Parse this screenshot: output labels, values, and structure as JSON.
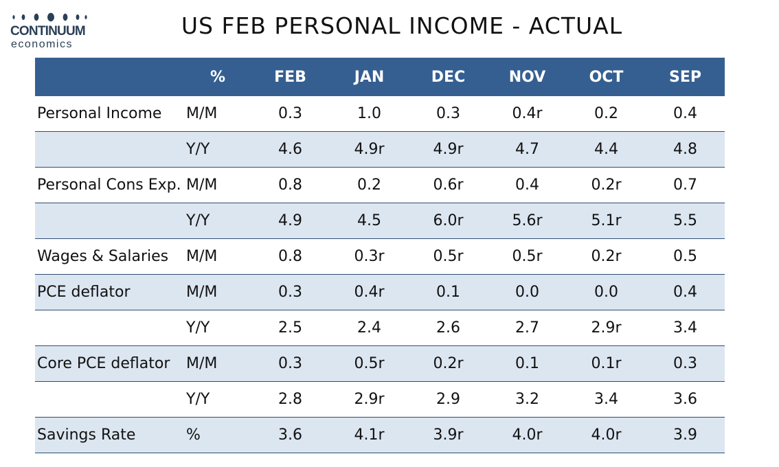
{
  "logo": {
    "name": "CONTINUUM",
    "sub": "economics",
    "color": "#2b3f57"
  },
  "title": "US FEB PERSONAL INCOME - ACTUAL",
  "table": {
    "header_color": "#355f91",
    "shade_color": "#dce6f1",
    "headers": [
      "",
      "%",
      "FEB",
      "JAN",
      "DEC",
      "NOV",
      "OCT",
      "SEP"
    ],
    "rows": [
      {
        "label": "Personal Income",
        "unit": "M/M",
        "values": [
          "0.3",
          "1.0",
          "0.3",
          "0.4r",
          "0.2",
          "0.4"
        ],
        "shaded": false
      },
      {
        "label": "",
        "unit": "Y/Y",
        "values": [
          "4.6",
          "4.9r",
          "4.9r",
          "4.7",
          "4.4",
          "4.8"
        ],
        "shaded": true
      },
      {
        "label": "Personal Cons Exp.",
        "unit": "M/M",
        "values": [
          "0.8",
          "0.2",
          "0.6r",
          "0.4",
          "0.2r",
          "0.7"
        ],
        "shaded": false
      },
      {
        "label": "",
        "unit": "Y/Y",
        "values": [
          "4.9",
          "4.5",
          "6.0r",
          "5.6r",
          "5.1r",
          "5.5"
        ],
        "shaded": true
      },
      {
        "label": "Wages & Salaries",
        "unit": "M/M",
        "values": [
          "0.8",
          "0.3r",
          "0.5r",
          "0.5r",
          "0.2r",
          "0.5"
        ],
        "shaded": false
      },
      {
        "label": "PCE deflator",
        "unit": "M/M",
        "values": [
          "0.3",
          "0.4r",
          "0.1",
          "0.0",
          "0.0",
          "0.4"
        ],
        "shaded": true
      },
      {
        "label": "",
        "unit": "Y/Y",
        "values": [
          "2.5",
          "2.4",
          "2.6",
          "2.7",
          "2.9r",
          "3.4"
        ],
        "shaded": false
      },
      {
        "label": "Core PCE deflator",
        "unit": "M/M",
        "values": [
          "0.3",
          "0.5r",
          "0.2r",
          "0.1",
          "0.1r",
          "0.3"
        ],
        "shaded": true
      },
      {
        "label": "",
        "unit": "Y/Y",
        "values": [
          "2.8",
          "2.9r",
          "2.9",
          "3.2",
          "3.4",
          "3.6"
        ],
        "shaded": false
      },
      {
        "label": "Savings Rate",
        "unit": "%",
        "values": [
          "3.6",
          "4.1r",
          "3.9r",
          "4.0r",
          "4.0r",
          "3.9"
        ],
        "shaded": true
      }
    ]
  }
}
